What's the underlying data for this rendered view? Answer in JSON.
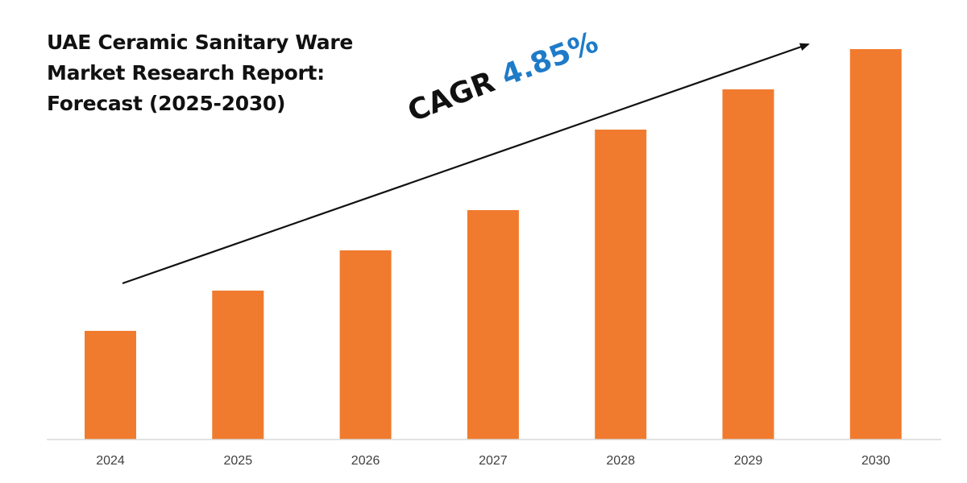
{
  "title_lines": [
    "UAE Ceramic Sanitary Ware",
    "Market Research Report:",
    "Forecast (2025-2030)"
  ],
  "cagr": {
    "label": "CAGR",
    "value": "4.85%",
    "value_color": "#1f7bc8"
  },
  "chart_data": {
    "type": "bar",
    "title": "UAE Ceramic Sanitary Ware Market Research Report: Forecast (2025-2030)",
    "categories": [
      "2024",
      "2025",
      "2026",
      "2027",
      "2028",
      "2029",
      "2030"
    ],
    "values": [
      27,
      37,
      47,
      57,
      77,
      87,
      97
    ],
    "ylim": [
      0,
      100
    ],
    "xlabel": "",
    "ylabel": "",
    "grid": false,
    "bar_color": "#f07b2e",
    "axis_color": "#d9d9d9",
    "trend_arrow": true
  }
}
